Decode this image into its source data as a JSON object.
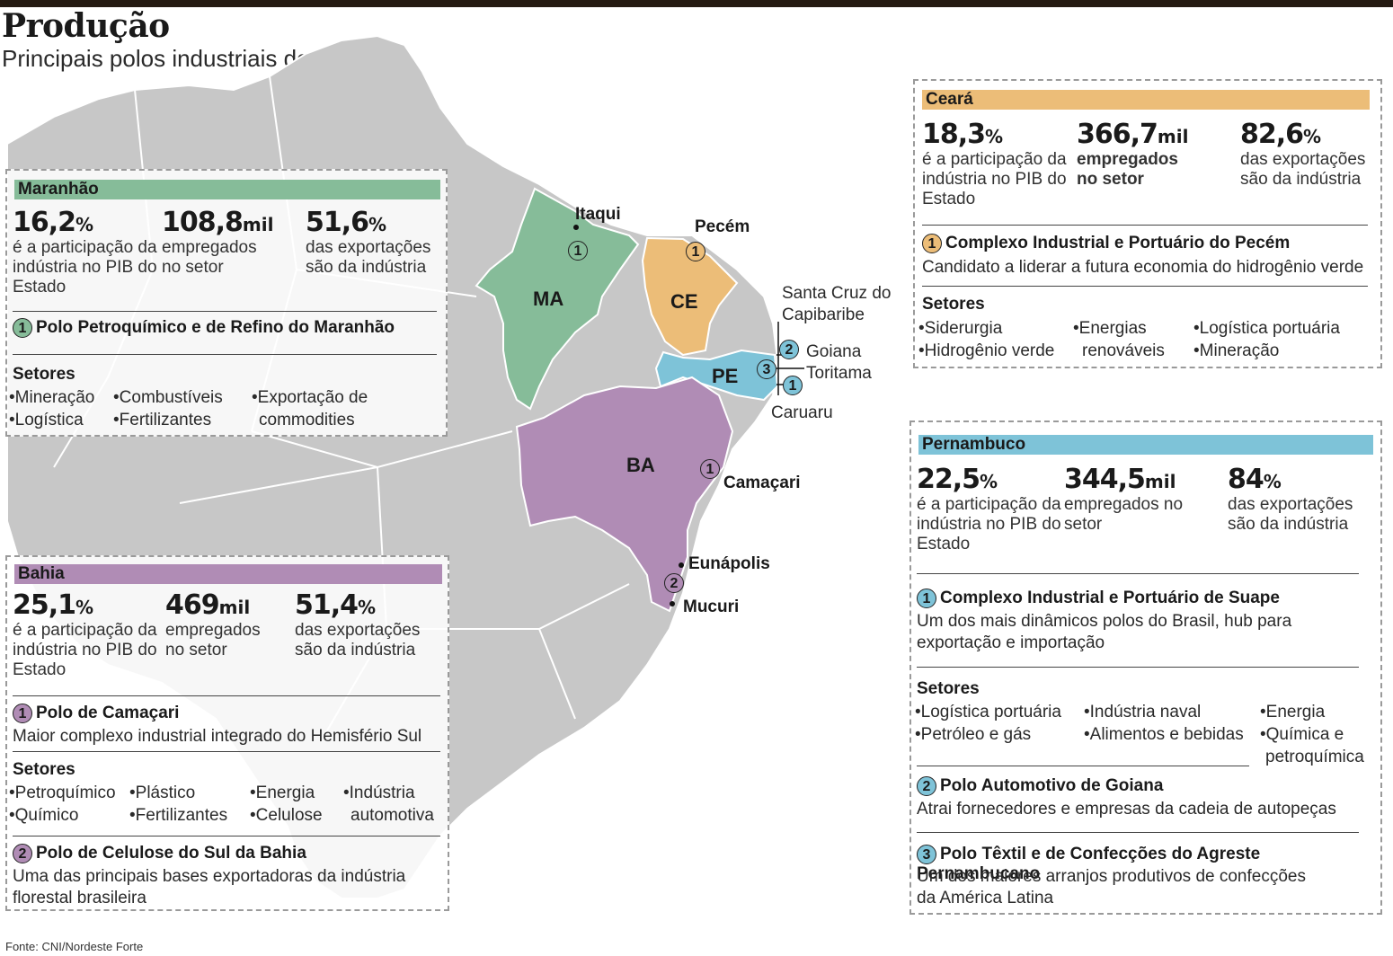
{
  "header": {
    "title": "Produção",
    "subtitle": "Principais polos industriais do Nordeste"
  },
  "colors": {
    "maranhao": "#86bc99",
    "ceara": "#ecbd78",
    "pernambuco": "#7ec3d8",
    "bahia": "#b08cb5",
    "land": "#c7c7c7",
    "border": "#ffffff"
  },
  "map": {
    "states": {
      "ma": "MA",
      "ce": "CE",
      "pe": "PE",
      "ba": "BA"
    },
    "cities": {
      "itaqui": "Itaqui",
      "pecem": "Pecém",
      "santa_cruz": "Santa Cruz do Capibaribe",
      "goiana": "Goiana",
      "toritama": "Toritama",
      "caruaru": "Caruaru",
      "camacari": "Camaçari",
      "eunapolis": "Eunápolis",
      "mucuri": "Mucuri"
    },
    "markers": {
      "itaqui": "1",
      "pecem": "1",
      "pe_goiana": "2",
      "pe_toritama": "3",
      "pe_suape": "1",
      "camacari": "1",
      "sul_bahia": "2"
    }
  },
  "maranhao": {
    "name": "Maranhão",
    "stats": [
      {
        "value": "16,2",
        "unit": "%",
        "label": "é a participação da indústria no PIB do Estado"
      },
      {
        "value": "108,8",
        "unit": "mil",
        "label": "empregados no setor"
      },
      {
        "value": "51,6",
        "unit": "%",
        "label": "das exportações são da indústria"
      }
    ],
    "polos": [
      {
        "num": "1",
        "name": "Polo Petroquímico e de Refino do Maranhão"
      }
    ],
    "setores_label": "Setores",
    "setores": [
      "•Mineração",
      "•Logística",
      "•Combustíveis",
      "•Fertilizantes",
      "•Exportação de",
      "commodities"
    ]
  },
  "ceara": {
    "name": "Ceará",
    "stats": [
      {
        "value": "18,3",
        "unit": "%",
        "label": "é a participação da indústria no PIB do Estado"
      },
      {
        "value": "366,7",
        "unit": "mil",
        "label": "empregados no setor"
      },
      {
        "value": "82,6",
        "unit": "%",
        "label": "das exportações são da indústria"
      }
    ],
    "polos": [
      {
        "num": "1",
        "name": "Complexo Industrial e Portuário do Pecém",
        "desc": "Candidato a liderar a futura economia do hidrogênio verde"
      }
    ],
    "setores_label": "Setores",
    "setores": [
      "•Siderurgia",
      "•Hidrogênio verde",
      "•Energias",
      "renováveis",
      "•Logística portuária",
      "•Mineração"
    ]
  },
  "pernambuco": {
    "name": "Pernambuco",
    "stats": [
      {
        "value": "22,5",
        "unit": "%",
        "label": "é a participação da indústria no PIB do Estado"
      },
      {
        "value": "344,5",
        "unit": "mil",
        "label": "empregados no setor"
      },
      {
        "value": "84",
        "unit": "%",
        "label": "das exportações são da indústria"
      }
    ],
    "polos": [
      {
        "num": "1",
        "name": "Complexo Industrial e Portuário de Suape",
        "desc": "Um dos mais dinâmicos polos do Brasil, hub para exportação e importação"
      },
      {
        "num": "2",
        "name": "Polo Automotivo de Goiana",
        "desc": "Atrai fornecedores e empresas da cadeia de autopeças"
      },
      {
        "num": "3",
        "name": "Polo Têxtil e de Confecções do Agreste Pernambucano",
        "desc": "Um dos maiores arranjos produtivos de confecções da América Latina"
      }
    ],
    "setores_label": "Setores",
    "setores": [
      "•Logística portuária",
      "•Petróleo e gás",
      "•Indústria naval",
      "•Alimentos e bebidas",
      "•Energia",
      "•Química e",
      "petroquímica"
    ]
  },
  "bahia": {
    "name": "Bahia",
    "stats": [
      {
        "value": "25,1",
        "unit": "%",
        "label": "é a participação da indústria no PIB do Estado"
      },
      {
        "value": "469",
        "unit": "mil",
        "label": "empregados no setor"
      },
      {
        "value": "51,4",
        "unit": "%",
        "label": "das exportações são da indústria"
      }
    ],
    "polos": [
      {
        "num": "1",
        "name": "Polo de Camaçari",
        "desc": "Maior complexo industrial integrado do Hemisfério Sul"
      },
      {
        "num": "2",
        "name": "Polo de Celulose do Sul da Bahia",
        "desc": "Uma das principais bases exportadoras da indústria florestal brasileira"
      }
    ],
    "setores_label": "Setores",
    "setores": [
      "•Petroquímico",
      "•Químico",
      "•Plástico",
      "•Fertilizantes",
      "•Energia",
      "•Celulose",
      "•Indústria",
      "automotiva"
    ]
  },
  "source": "Fonte: CNI/Nordeste Forte"
}
